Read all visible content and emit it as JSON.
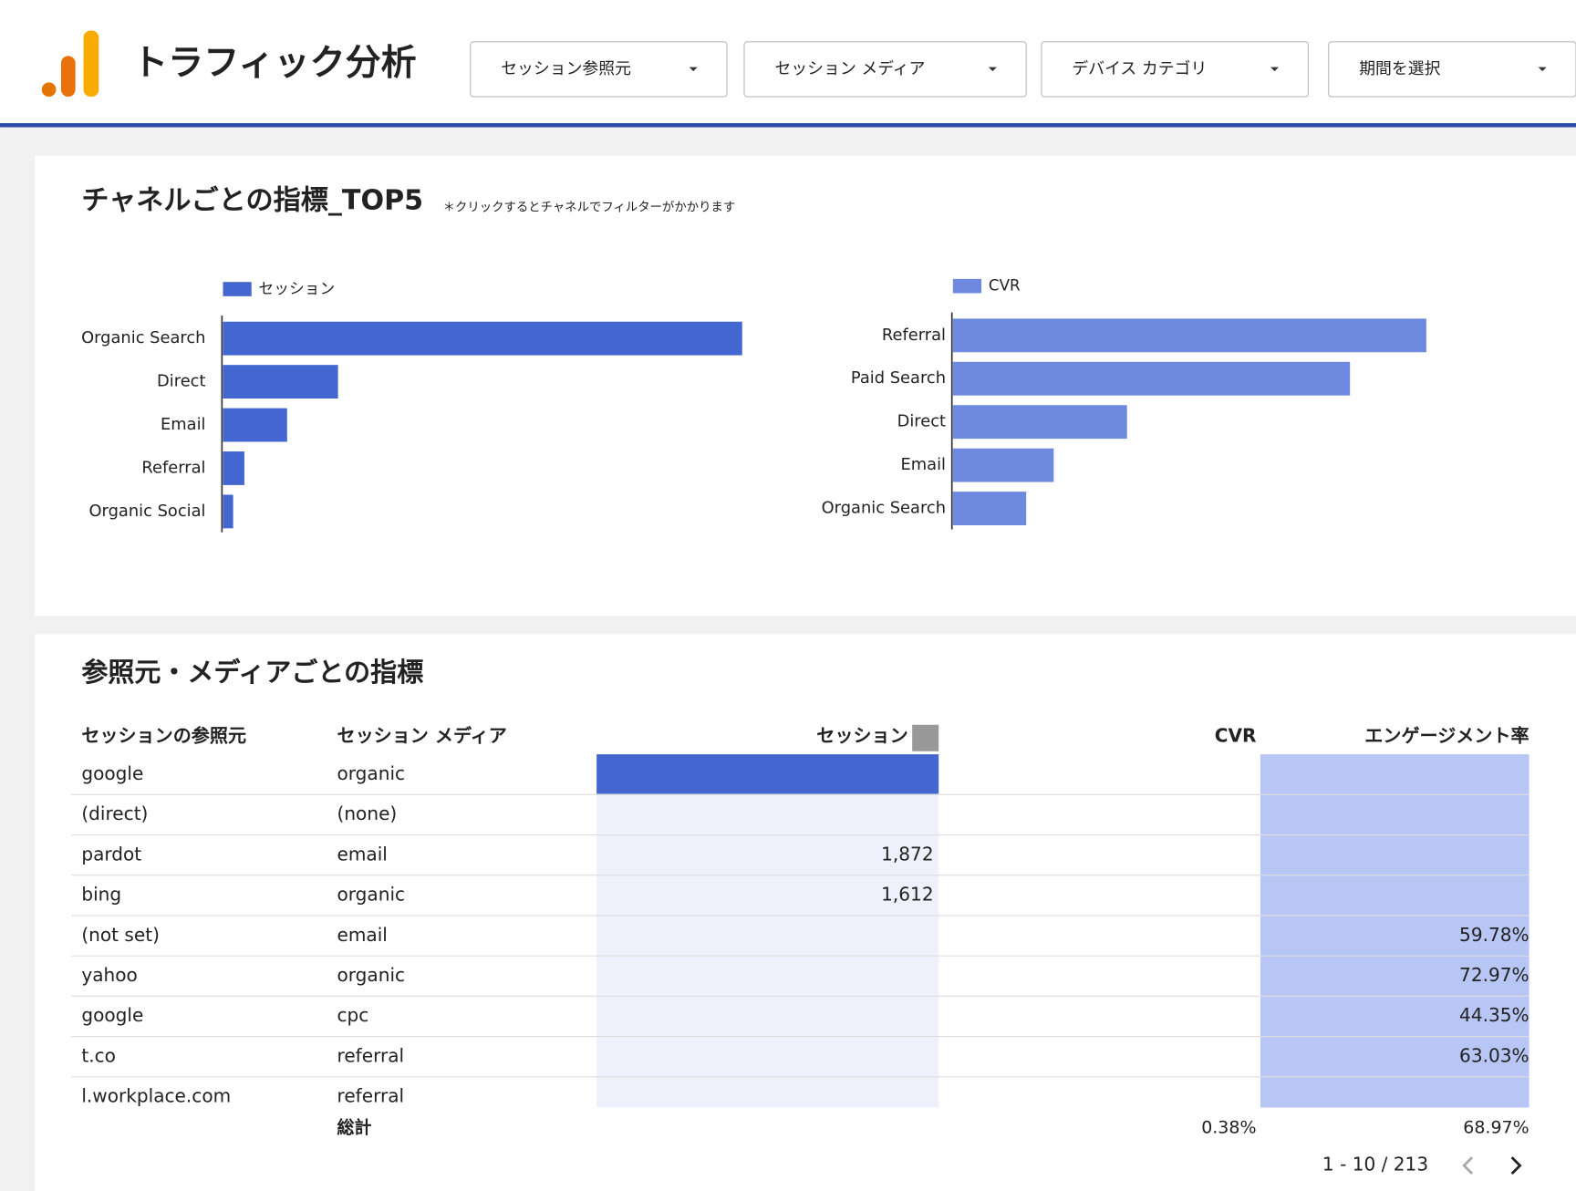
{
  "header": {
    "title": "トラフィック分析",
    "filters": [
      "セッション参照元",
      "セッション メディア",
      "デバイス カテゴリ",
      "期間を選択"
    ]
  },
  "chart_panel": {
    "title": "チャネルごとの指標_TOP5",
    "note": "＊クリックするとチャネルでフィルターがかかります"
  },
  "chart_data": [
    {
      "type": "bar",
      "horizontal": true,
      "categories": [
        "Organic Search",
        "Direct",
        "Email",
        "Referral",
        "Organic Social"
      ],
      "series": [
        {
          "name": "セッション",
          "color": "#4366d0",
          "values": [
            25500,
            5650,
            3150,
            1050,
            500
          ]
        }
      ],
      "xlim": [
        0,
        27000
      ]
    },
    {
      "type": "bar",
      "horizontal": true,
      "categories": [
        "Referral",
        "Paid Search",
        "Direct",
        "Email",
        "Organic Search"
      ],
      "series": [
        {
          "name": "CVR",
          "color": "#6d8ae0",
          "values": [
            1.55,
            1.3,
            0.57,
            0.33,
            0.24
          ]
        }
      ],
      "xlim": [
        0,
        1.8
      ]
    }
  ],
  "table": {
    "title": "参照元・メディアごとの指標",
    "columns": [
      "セッションの参照元",
      "セッション メディア",
      "セッション",
      "CVR",
      "エンゲージメント率"
    ],
    "rows": [
      [
        "google",
        "organic",
        null,
        null,
        null
      ],
      [
        "(direct)",
        "(none)",
        null,
        null,
        null
      ],
      [
        "pardot",
        "email",
        "1,872",
        null,
        null
      ],
      [
        "bing",
        "organic",
        "1,612",
        null,
        null
      ],
      [
        "(not set)",
        "email",
        null,
        null,
        "59.78%"
      ],
      [
        "yahoo",
        "organic",
        null,
        null,
        "72.97%"
      ],
      [
        "google",
        "cpc",
        null,
        null,
        "44.35%"
      ],
      [
        "t.co",
        "referral",
        null,
        null,
        "63.03%"
      ],
      [
        "l.workplace.com",
        "referral",
        null,
        null,
        null
      ]
    ],
    "total_label": "総計",
    "totals": [
      null,
      "0.38%",
      "68.97%"
    ],
    "pagination": "1 - 10 / 213"
  }
}
